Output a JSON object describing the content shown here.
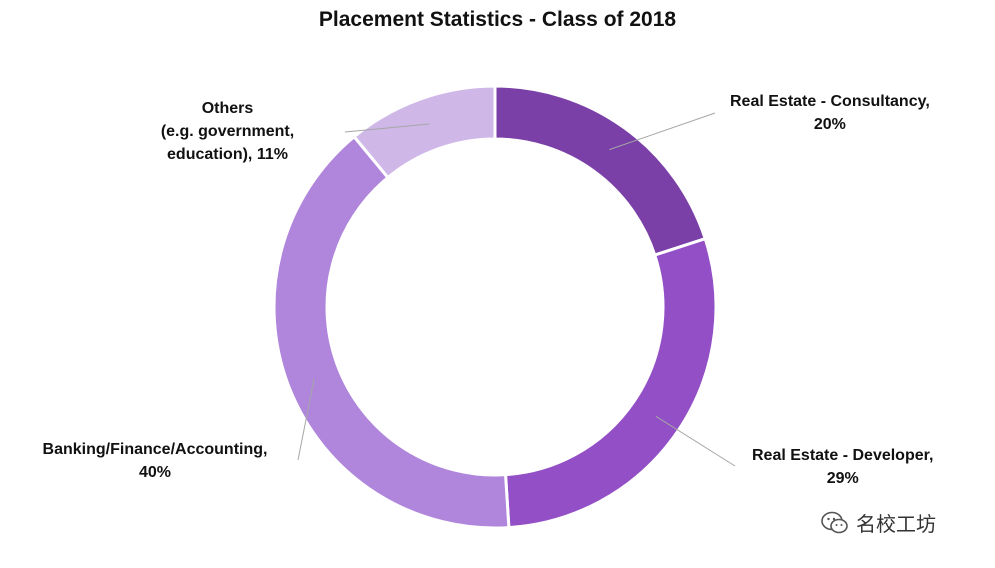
{
  "chart_data": {
    "type": "pie",
    "donut": true,
    "title": "Placement Statistics - Class of 2018",
    "slices": [
      {
        "label_lines": [
          "Real Estate - Consultancy,",
          "20%"
        ],
        "value": 20,
        "color": "#7a40a8"
      },
      {
        "label_lines": [
          "Real Estate - Developer,",
          "29%"
        ],
        "value": 29,
        "color": "#934fc6"
      },
      {
        "label_lines": [
          "Banking/Finance/Accounting,",
          "40%"
        ],
        "value": 40,
        "color": "#af86db"
      },
      {
        "label_lines": [
          "Others",
          "(e.g. government,",
          "education), 11%"
        ],
        "value": 11,
        "color": "#cfb8e8"
      }
    ],
    "start_angle_deg": 0,
    "direction": "clockwise",
    "legend": "none"
  },
  "watermark": {
    "text": "名校工坊",
    "icon": "wechat-icon"
  }
}
